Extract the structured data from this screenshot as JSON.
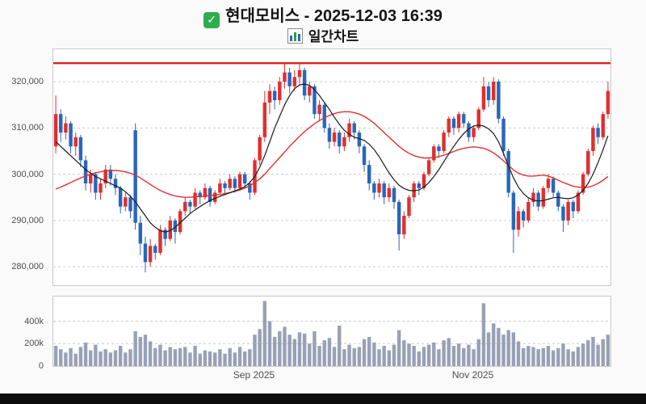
{
  "header": {
    "title": "현대모비스 - 2025-12-03 16:39",
    "subtitle": "일간차트",
    "check_glyph": "✓"
  },
  "colors": {
    "up": "#df2f2f",
    "down": "#2a66bb",
    "ma_short": "#1a1a1a",
    "ma_long": "#e03030",
    "alert_line": "#e01f1f",
    "volume_bar": "#98a1b5",
    "grid": "#cccccc",
    "axis_text": "#4d4d4d",
    "check_icon_bg": "#2fac4b"
  },
  "chart_data": {
    "type": "candlestick_with_volume",
    "title": "현대모비스 일간차트 (daily candlestick with volume)",
    "legend_position": "none",
    "grid": true,
    "price_axis": {
      "min": 276000,
      "max": 327000,
      "ticks": [
        280000,
        290000,
        300000,
        310000,
        320000
      ],
      "tick_labels": [
        "280,000",
        "290,000",
        "300,000",
        "310,000",
        "320,000"
      ]
    },
    "volume_axis": {
      "min": 0,
      "max": 620000,
      "ticks": [
        0,
        200000,
        400000
      ],
      "tick_labels": [
        "0",
        "200k",
        "400k"
      ]
    },
    "x_ticks": [
      {
        "index": 40,
        "label": "Sep 2025"
      },
      {
        "index": 84,
        "label": "Nov 2025"
      }
    ],
    "alert_line": {
      "price": 324000
    },
    "series_names": [
      "candles OHLC+volume",
      "ma_short (black)",
      "ma_long (red)"
    ],
    "candles": [
      [
        306000,
        317000,
        304500,
        313000,
        180000
      ],
      [
        313000,
        314000,
        307000,
        309000,
        150000
      ],
      [
        309000,
        312500,
        307500,
        311000,
        120000
      ],
      [
        311000,
        311500,
        304500,
        306000,
        160000
      ],
      [
        306000,
        309000,
        304000,
        308000,
        110000
      ],
      [
        308000,
        308500,
        301500,
        303000,
        170000
      ],
      [
        303000,
        304000,
        296500,
        298000,
        210000
      ],
      [
        298000,
        301000,
        296000,
        300000,
        140000
      ],
      [
        300000,
        300500,
        294500,
        296000,
        190000
      ],
      [
        296000,
        299000,
        294500,
        298000,
        130000
      ],
      [
        298000,
        302000,
        297000,
        301000,
        150000
      ],
      [
        301000,
        302000,
        297500,
        299000,
        120000
      ],
      [
        299000,
        300000,
        295500,
        297000,
        140000
      ],
      [
        297000,
        297500,
        291500,
        293000,
        180000
      ],
      [
        293000,
        296000,
        292000,
        295000,
        120000
      ],
      [
        295000,
        295500,
        290500,
        292000,
        150000
      ],
      [
        309500,
        311000,
        288000,
        289500,
        310000
      ],
      [
        289500,
        291000,
        282500,
        285000,
        260000
      ],
      [
        285000,
        286500,
        278800,
        281000,
        280000
      ],
      [
        281000,
        286000,
        280000,
        284500,
        220000
      ],
      [
        284500,
        285000,
        281500,
        283000,
        160000
      ],
      [
        283000,
        289000,
        282500,
        288000,
        190000
      ],
      [
        288000,
        288500,
        284500,
        286000,
        140000
      ],
      [
        286000,
        291000,
        285500,
        290000,
        170000
      ],
      [
        290000,
        290500,
        285000,
        287500,
        150000
      ],
      [
        287500,
        292500,
        287000,
        292000,
        160000
      ],
      [
        292000,
        295000,
        291000,
        294000,
        170000
      ],
      [
        294000,
        294500,
        291500,
        293000,
        120000
      ],
      [
        293000,
        297000,
        292500,
        296000,
        180000
      ],
      [
        296000,
        296500,
        293500,
        295000,
        110000
      ],
      [
        295000,
        298000,
        294500,
        297000,
        140000
      ],
      [
        297000,
        297500,
        293000,
        294000,
        130000
      ],
      [
        294000,
        296500,
        293500,
        296000,
        120000
      ],
      [
        296000,
        299000,
        295500,
        298000,
        150000
      ],
      [
        298000,
        298500,
        295500,
        297000,
        110000
      ],
      [
        297000,
        300000,
        296500,
        299000,
        160000
      ],
      [
        299000,
        299500,
        296000,
        297000,
        120000
      ],
      [
        297000,
        300500,
        296500,
        300000,
        170000
      ],
      [
        300000,
        300500,
        297000,
        298000,
        130000
      ],
      [
        298000,
        298500,
        294500,
        296000,
        150000
      ],
      [
        296000,
        303500,
        295500,
        303000,
        280000
      ],
      [
        303000,
        308500,
        302000,
        308000,
        330000
      ],
      [
        308000,
        318000,
        307000,
        315500,
        580000
      ],
      [
        315500,
        319500,
        313000,
        318000,
        400000
      ],
      [
        318000,
        319000,
        314000,
        316000,
        260000
      ],
      [
        316000,
        321000,
        315000,
        320000,
        310000
      ],
      [
        320000,
        324000,
        318500,
        322000,
        350000
      ],
      [
        322000,
        323000,
        317500,
        319000,
        280000
      ],
      [
        319000,
        322500,
        318000,
        321000,
        240000
      ],
      [
        321000,
        324000,
        319500,
        322500,
        300000
      ],
      [
        322500,
        323000,
        316000,
        317000,
        290000
      ],
      [
        317000,
        320000,
        315500,
        319000,
        200000
      ],
      [
        319000,
        319500,
        312000,
        313000,
        310000
      ],
      [
        313000,
        316000,
        311500,
        315000,
        180000
      ],
      [
        315000,
        315500,
        309000,
        310000,
        230000
      ],
      [
        310000,
        311000,
        305500,
        307000,
        250000
      ],
      [
        307000,
        310000,
        306000,
        309000,
        170000
      ],
      [
        309000,
        309500,
        304500,
        306000,
        360000
      ],
      [
        306000,
        309000,
        305000,
        308000,
        150000
      ],
      [
        308000,
        312000,
        307000,
        311000,
        190000
      ],
      [
        311000,
        311500,
        307500,
        309000,
        160000
      ],
      [
        309000,
        309500,
        304500,
        306000,
        170000
      ],
      [
        306000,
        306500,
        300500,
        302000,
        240000
      ],
      [
        302000,
        303000,
        296500,
        298000,
        260000
      ],
      [
        298000,
        298500,
        294500,
        296000,
        210000
      ],
      [
        296000,
        299000,
        295000,
        298000,
        150000
      ],
      [
        298000,
        298500,
        293500,
        295000,
        180000
      ],
      [
        295000,
        298000,
        294000,
        297000,
        140000
      ],
      [
        297000,
        297500,
        292500,
        294000,
        190000
      ],
      [
        294000,
        294500,
        283500,
        287000,
        320000
      ],
      [
        287000,
        292000,
        286000,
        291000,
        230000
      ],
      [
        291000,
        295500,
        290500,
        295000,
        200000
      ],
      [
        295000,
        298500,
        294000,
        298000,
        180000
      ],
      [
        298000,
        298500,
        295500,
        297000,
        130000
      ],
      [
        297000,
        300500,
        296500,
        300000,
        170000
      ],
      [
        300000,
        303500,
        299500,
        303000,
        190000
      ],
      [
        303000,
        306500,
        302500,
        306000,
        210000
      ],
      [
        306000,
        306500,
        303500,
        305000,
        150000
      ],
      [
        305000,
        309500,
        304500,
        309000,
        230000
      ],
      [
        309000,
        312500,
        308000,
        312000,
        250000
      ],
      [
        312000,
        312500,
        308500,
        310000,
        180000
      ],
      [
        310000,
        313500,
        309000,
        313000,
        200000
      ],
      [
        313000,
        313500,
        310000,
        311000,
        160000
      ],
      [
        311000,
        311500,
        307000,
        308000,
        190000
      ],
      [
        308000,
        310500,
        307000,
        310000,
        150000
      ],
      [
        310000,
        314500,
        309500,
        314000,
        240000
      ],
      [
        314000,
        321000,
        313500,
        319000,
        560000
      ],
      [
        319000,
        320000,
        314500,
        316000,
        300000
      ],
      [
        316000,
        321000,
        315000,
        320000,
        380000
      ],
      [
        320000,
        320500,
        311000,
        312000,
        340000
      ],
      [
        312000,
        312500,
        304000,
        305000,
        280000
      ],
      [
        305000,
        305500,
        295000,
        296000,
        320000
      ],
      [
        296000,
        296500,
        283000,
        288000,
        300000
      ],
      [
        288000,
        293000,
        286500,
        292000,
        220000
      ],
      [
        292000,
        292500,
        288500,
        290000,
        160000
      ],
      [
        290000,
        295000,
        289500,
        294000,
        180000
      ],
      [
        294000,
        297000,
        293000,
        296000,
        170000
      ],
      [
        296000,
        296500,
        292000,
        293000,
        150000
      ],
      [
        293000,
        297500,
        292500,
        297000,
        160000
      ],
      [
        297000,
        300000,
        296000,
        299000,
        180000
      ],
      [
        299000,
        299500,
        295000,
        296000,
        140000
      ],
      [
        296000,
        296500,
        292000,
        293000,
        160000
      ],
      [
        293000,
        293500,
        287500,
        290000,
        200000
      ],
      [
        290000,
        294500,
        289000,
        294000,
        150000
      ],
      [
        294000,
        294500,
        290500,
        292000,
        130000
      ],
      [
        292000,
        296500,
        291500,
        296000,
        170000
      ],
      [
        296000,
        300500,
        295500,
        300000,
        200000
      ],
      [
        300000,
        305500,
        299500,
        305000,
        230000
      ],
      [
        305000,
        310500,
        304000,
        310000,
        260000
      ],
      [
        310000,
        311000,
        306500,
        308000,
        190000
      ],
      [
        308000,
        313500,
        307500,
        313000,
        240000
      ],
      [
        313000,
        320000,
        312000,
        318000,
        280000
      ]
    ],
    "ma_short": [
      307000,
      306000,
      305000,
      304000,
      303000,
      302000,
      301000,
      300200,
      299500,
      299000,
      298500,
      298000,
      297500,
      297000,
      296200,
      295200,
      294000,
      292500,
      291000,
      289500,
      288500,
      287800,
      287500,
      287800,
      288500,
      289500,
      290500,
      291500,
      292300,
      293000,
      293700,
      294300,
      294800,
      295200,
      295600,
      296000,
      296400,
      296800,
      297300,
      298200,
      299500,
      301500,
      304000,
      307000,
      310000,
      312500,
      315000,
      317000,
      318500,
      319300,
      319500,
      319200,
      318300,
      317000,
      315500,
      314000,
      312300,
      310800,
      309500,
      308600,
      308000,
      307700,
      307300,
      306500,
      305300,
      303800,
      302000,
      300300,
      298800,
      297600,
      296900,
      296500,
      296400,
      296600,
      297200,
      298200,
      299500,
      301000,
      302700,
      304400,
      306000,
      307500,
      308800,
      309800,
      310400,
      310600,
      310400,
      309800,
      308800,
      307000,
      304500,
      301800,
      299200,
      297200,
      295800,
      294900,
      294400,
      294200,
      294300,
      294600,
      294900,
      295000,
      294800,
      294700,
      294900,
      295500,
      296500,
      298000,
      300000,
      302500,
      305300,
      308300
    ],
    "ma_long": [
      296800,
      297200,
      297700,
      298200,
      298700,
      299200,
      299600,
      300000,
      300300,
      300500,
      300700,
      300800,
      300800,
      300700,
      300500,
      300200,
      299800,
      299200,
      298500,
      297800,
      297100,
      296500,
      296000,
      295600,
      295300,
      295100,
      295000,
      295000,
      295100,
      295200,
      295300,
      295400,
      295500,
      295600,
      295800,
      296000,
      296300,
      296600,
      297000,
      297500,
      298200,
      299000,
      300000,
      301200,
      302400,
      303600,
      304800,
      306000,
      307100,
      308200,
      309200,
      310100,
      310900,
      311600,
      312200,
      312700,
      313100,
      313400,
      313500,
      313500,
      313300,
      313000,
      312500,
      311800,
      311000,
      310000,
      309000,
      308000,
      307000,
      306000,
      305200,
      304500,
      304000,
      303700,
      303500,
      303500,
      303600,
      303800,
      304100,
      304500,
      304900,
      305300,
      305600,
      305800,
      305900,
      305800,
      305600,
      305200,
      304600,
      303800,
      302900,
      301900,
      300900,
      300200,
      299800,
      299600,
      299600,
      299700,
      299800,
      299600,
      299200,
      298700,
      298200,
      297800,
      297400,
      297200,
      297100,
      297200,
      297500,
      298000,
      298700,
      299500
    ]
  }
}
